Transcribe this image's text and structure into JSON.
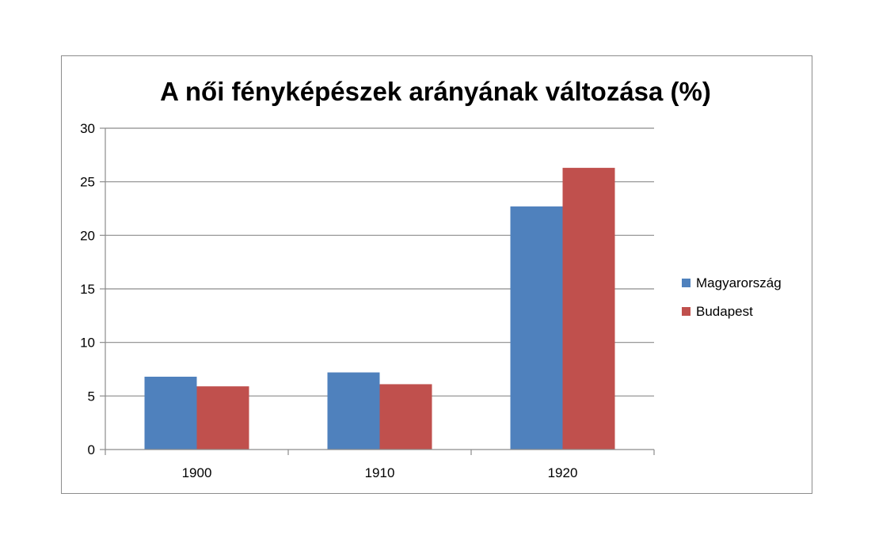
{
  "chart_data": {
    "type": "bar",
    "title": "A női fényképészek arányának változása (%)",
    "xlabel": "",
    "ylabel": "",
    "categories": [
      "1900",
      "1910",
      "1920"
    ],
    "series": [
      {
        "name": "Magyarország",
        "color": "#4f81bd",
        "values": [
          6.8,
          7.2,
          22.7
        ]
      },
      {
        "name": "Budapest",
        "color": "#c0504d",
        "values": [
          5.9,
          6.1,
          26.3
        ]
      }
    ],
    "ylim": [
      0,
      30
    ],
    "yticks": [
      0,
      5,
      10,
      15,
      20,
      25,
      30
    ],
    "grid": true,
    "legend_position": "right",
    "colors": {
      "gridline": "#8c8c8c",
      "axis": "#8c8c8c",
      "frame": "#8c8c8c"
    }
  }
}
